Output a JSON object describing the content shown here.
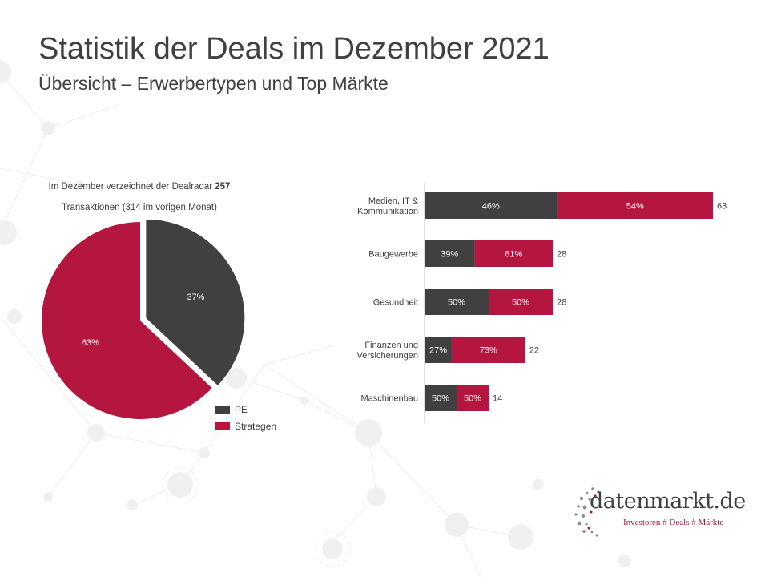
{
  "header": {
    "title": "Statistik der Deals im Dezember 2021",
    "subtitle": "Übersicht – Erwerbertypen und Top Märkte"
  },
  "intro": {
    "line1_prefix": "Im Dezember verzeichnet der Dealradar",
    "line1_count": "257",
    "line2": "Transaktionen (314 im vorigen Monat)"
  },
  "colors": {
    "pe": "#404040",
    "strategen": "#b5163f"
  },
  "logo": {
    "name": "datenmarkt.de",
    "tagline": "Investoren # Deals # Märkte"
  },
  "chart_data": [
    {
      "type": "pie",
      "categories": [
        "PE",
        "Strategen"
      ],
      "values": [
        37,
        63
      ],
      "labels": [
        "37%",
        "63%"
      ],
      "legend": [
        "PE",
        "Strategen"
      ],
      "legend_position": "bottom-right"
    },
    {
      "type": "bar",
      "orientation": "horizontal",
      "stacked": true,
      "categories": [
        [
          "Medien, IT &",
          "Kommunikation"
        ],
        [
          "Baugewerbe"
        ],
        [
          "Gesundheit"
        ],
        [
          "Finanzen  und",
          "Versicherungen"
        ],
        [
          "Maschinenbau"
        ]
      ],
      "totals": [
        63,
        28,
        28,
        22,
        14
      ],
      "series": [
        {
          "name": "PE",
          "percent_labels": [
            "46%",
            "39%",
            "50%",
            "27%",
            "50%"
          ],
          "share": [
            0.46,
            0.39,
            0.5,
            0.27,
            0.5
          ]
        },
        {
          "name": "Strategen",
          "percent_labels": [
            "54%",
            "61%",
            "50%",
            "73%",
            "50%"
          ],
          "share": [
            0.54,
            0.61,
            0.5,
            0.73,
            0.5
          ]
        }
      ],
      "xlim": [
        0,
        63
      ]
    }
  ]
}
